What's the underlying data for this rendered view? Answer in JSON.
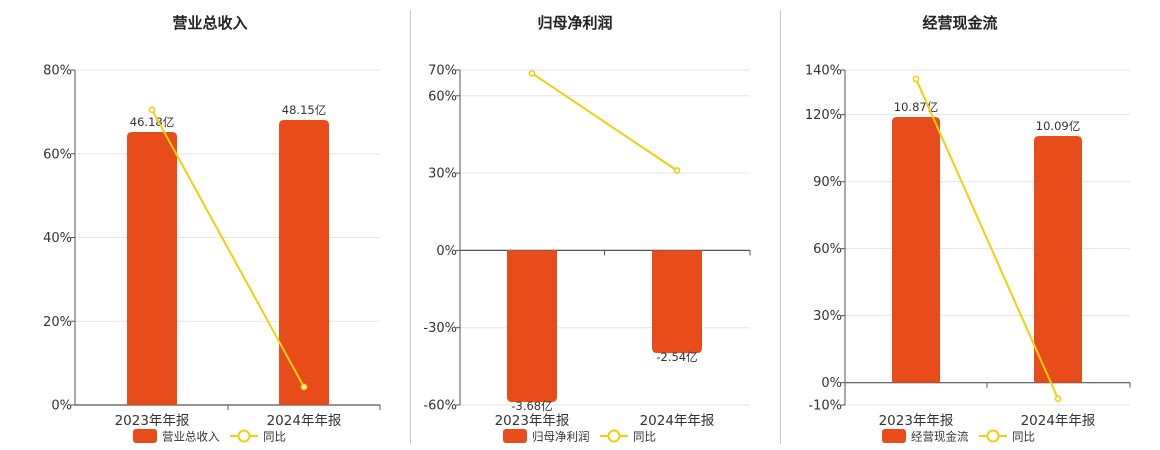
{
  "chart_data": [
    {
      "type": "bar",
      "title": "营业总收入",
      "categories": [
        "2023年年报",
        "2024年年报"
      ],
      "series": [
        {
          "name": "营业总收入",
          "type": "bar",
          "values": [
            46.18,
            48.15
          ],
          "labels": [
            "46.18亿",
            "48.15亿"
          ],
          "color": "#e84c1a"
        },
        {
          "name": "同比",
          "type": "line",
          "values": [
            70.5,
            4.3
          ],
          "color": "#f2cf0e"
        }
      ],
      "yticks": [
        "0%",
        "20%",
        "40%",
        "60%",
        "80%"
      ],
      "ylim": [
        0,
        80
      ],
      "grid": true,
      "legend": "bottom"
    },
    {
      "type": "bar",
      "title": "归母净利润",
      "categories": [
        "2023年年报",
        "2024年年报"
      ],
      "series": [
        {
          "name": "归母净利润",
          "type": "bar",
          "values": [
            -3.68,
            -2.54
          ],
          "labels": [
            "-3.68亿",
            "-2.54亿"
          ],
          "color": "#e84c1a"
        },
        {
          "name": "同比",
          "type": "line",
          "values": [
            68.7,
            31
          ],
          "color": "#f2cf0e"
        }
      ],
      "yticks": [
        "-60%",
        "-30%",
        "0%",
        "30%",
        "60%",
        "70%"
      ],
      "ylim": [
        -60,
        70
      ],
      "grid": true,
      "legend": "bottom"
    },
    {
      "type": "bar",
      "title": "经营现金流",
      "categories": [
        "2023年年报",
        "2024年年报"
      ],
      "series": [
        {
          "name": "经营现金流",
          "type": "bar",
          "values": [
            10.87,
            10.09
          ],
          "labels": [
            "10.87亿",
            "10.09亿"
          ],
          "color": "#e84c1a"
        },
        {
          "name": "同比",
          "type": "line",
          "values": [
            136,
            -7.2
          ],
          "color": "#f2cf0e"
        }
      ],
      "yticks": [
        "-10%",
        "0%",
        "30%",
        "60%",
        "90%",
        "120%",
        "140%"
      ],
      "ylim": [
        -10,
        140
      ],
      "grid": true,
      "legend": "bottom"
    }
  ]
}
